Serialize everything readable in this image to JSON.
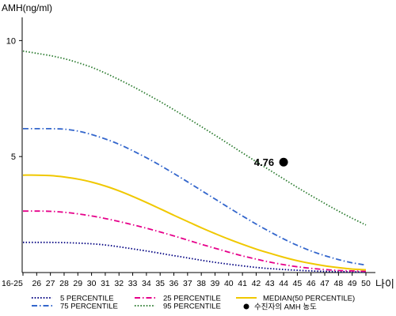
{
  "chart_data": {
    "type": "line",
    "ylabel": "AMH(ng/ml)",
    "xlabel": "나이",
    "x": [
      "16-25",
      "26",
      "27",
      "28",
      "29",
      "30",
      "31",
      "32",
      "33",
      "34",
      "35",
      "36",
      "37",
      "38",
      "39",
      "40",
      "41",
      "42",
      "43",
      "44",
      "45",
      "46",
      "47",
      "48",
      "49",
      "50"
    ],
    "yticks": [
      5,
      10
    ],
    "ylim": [
      0,
      11
    ],
    "grid": false,
    "legend_position": "bottom",
    "series": [
      {
        "name": "5 PERCENTILE",
        "color": "#000080",
        "style": "dotted",
        "values": [
          1.3,
          1.3,
          1.3,
          1.29,
          1.27,
          1.24,
          1.19,
          1.11,
          1.02,
          0.93,
          0.83,
          0.73,
          0.63,
          0.53,
          0.44,
          0.36,
          0.29,
          0.22,
          0.17,
          0.13,
          0.1,
          0.07,
          0.05,
          0.04,
          0.03,
          0.02
        ]
      },
      {
        "name": "25 PERCENTILE",
        "color": "#e6008a",
        "style": "dash-dot",
        "values": [
          2.65,
          2.65,
          2.64,
          2.6,
          2.53,
          2.44,
          2.33,
          2.2,
          2.06,
          1.91,
          1.75,
          1.58,
          1.4,
          1.22,
          1.05,
          0.88,
          0.72,
          0.58,
          0.45,
          0.34,
          0.25,
          0.18,
          0.13,
          0.09,
          0.07,
          0.05
        ]
      },
      {
        "name": "MEDIAN(50 PERCENTILE)",
        "color": "#f0c800",
        "style": "solid",
        "values": [
          4.2,
          4.2,
          4.18,
          4.12,
          4.03,
          3.9,
          3.73,
          3.52,
          3.28,
          3.02,
          2.75,
          2.47,
          2.2,
          1.93,
          1.68,
          1.44,
          1.22,
          1.01,
          0.83,
          0.66,
          0.51,
          0.39,
          0.29,
          0.21,
          0.15,
          0.12
        ]
      },
      {
        "name": "75 PERCENTILE",
        "color": "#3366cc",
        "style": "dash-dot",
        "values": [
          6.2,
          6.2,
          6.2,
          6.18,
          6.1,
          5.95,
          5.76,
          5.53,
          5.25,
          4.95,
          4.62,
          4.27,
          3.91,
          3.54,
          3.17,
          2.8,
          2.44,
          2.09,
          1.76,
          1.45,
          1.17,
          0.93,
          0.73,
          0.56,
          0.42,
          0.32
        ]
      },
      {
        "name": "95 PERCENTILE",
        "color": "#2e7d32",
        "style": "dotted",
        "values": [
          9.55,
          9.45,
          9.35,
          9.22,
          9.05,
          8.85,
          8.6,
          8.32,
          8.02,
          7.7,
          7.37,
          7.02,
          6.66,
          6.29,
          5.92,
          5.54,
          5.16,
          4.78,
          4.41,
          4.04,
          3.67,
          3.32,
          2.98,
          2.65,
          2.34,
          2.05
        ]
      }
    ],
    "marker": {
      "name": "수진자의 AMH 농도",
      "x": "44",
      "y": 4.76,
      "label": "4.76",
      "color": "#000000"
    }
  }
}
